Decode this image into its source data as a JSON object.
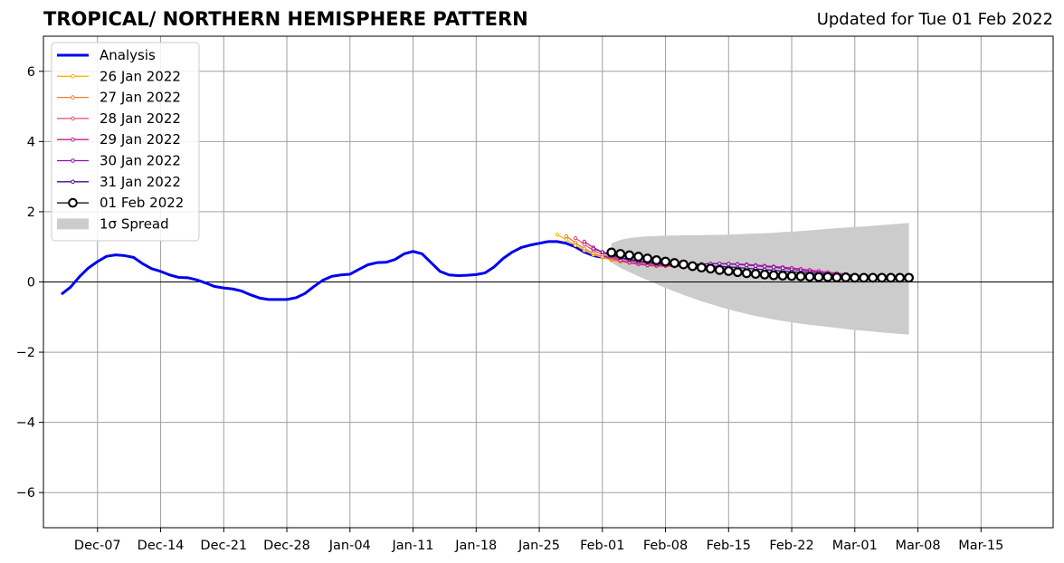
{
  "header": {
    "title": "TROPICAL/ NORTHERN HEMISPHERE PATTERN",
    "updated": "Updated for Tue 01 Feb 2022"
  },
  "colors": {
    "analysis": "#0000ee",
    "spread": "#cccccc",
    "grid": "#a0a0a0",
    "forecasts": [
      "#f5b800",
      "#f07e2a",
      "#e0506a",
      "#c0208a",
      "#8a10b0",
      "#4a0a8a",
      "#000000"
    ]
  },
  "chart_data": {
    "type": "line",
    "title": "TROPICAL/ NORTHERN HEMISPHERE PATTERN",
    "xlabel": "",
    "ylabel": "",
    "xlim": [
      "2021-12-01",
      "2022-03-23"
    ],
    "ylim": [
      -7,
      7
    ],
    "grid": true,
    "legend_position": "top-left",
    "x_ticks": [
      "Dec-07",
      "Dec-14",
      "Dec-21",
      "Dec-28",
      "Jan-04",
      "Jan-11",
      "Jan-18",
      "Jan-25",
      "Feb-01",
      "Feb-08",
      "Feb-15",
      "Feb-22",
      "Mar-01",
      "Mar-08",
      "Mar-15"
    ],
    "y_ticks": [
      "6",
      "4",
      "2",
      "0",
      "−2",
      "−4",
      "−6"
    ],
    "analysis": {
      "name": "Analysis",
      "start": "2021-12-03",
      "values": [
        -0.35,
        -0.15,
        0.15,
        0.4,
        0.58,
        0.73,
        0.77,
        0.75,
        0.7,
        0.52,
        0.38,
        0.3,
        0.2,
        0.13,
        0.12,
        0.06,
        -0.03,
        -0.13,
        -0.17,
        -0.2,
        -0.26,
        -0.37,
        -0.46,
        -0.5,
        -0.5,
        -0.5,
        -0.45,
        -0.33,
        -0.13,
        0.05,
        0.16,
        0.2,
        0.22,
        0.36,
        0.49,
        0.55,
        0.56,
        0.64,
        0.8,
        0.87,
        0.8,
        0.55,
        0.3,
        0.2,
        0.18,
        0.19,
        0.21,
        0.26,
        0.43,
        0.67,
        0.85,
        0.98,
        1.05,
        1.1,
        1.15,
        1.15,
        1.1,
        1.0,
        0.85,
        0.75,
        0.7,
        0.68
      ]
    },
    "forecasts": [
      {
        "name": "26 Jan 2022",
        "start": "2022-01-27",
        "values": [
          1.35,
          1.2,
          1.05,
          0.9,
          0.78,
          0.7,
          0.62,
          0.58,
          0.55,
          0.52,
          0.5,
          0.48,
          0.47,
          0.46
        ]
      },
      {
        "name": "27 Jan 2022",
        "start": "2022-01-28",
        "values": [
          1.3,
          1.12,
          0.95,
          0.82,
          0.72,
          0.64,
          0.58,
          0.54,
          0.5,
          0.48,
          0.47,
          0.46,
          0.45,
          0.45
        ]
      },
      {
        "name": "28 Jan 2022",
        "start": "2022-01-29",
        "values": [
          1.25,
          1.07,
          0.9,
          0.78,
          0.68,
          0.6,
          0.55,
          0.5,
          0.47,
          0.45,
          0.45,
          0.44,
          0.44,
          0.44,
          0.44
        ]
      },
      {
        "name": "29 Jan 2022",
        "start": "2022-01-30",
        "values": [
          1.15,
          0.98,
          0.85,
          0.72,
          0.62,
          0.56,
          0.52,
          0.48,
          0.47,
          0.47,
          0.48,
          0.49,
          0.5,
          0.51,
          0.52,
          0.52,
          0.52,
          0.51,
          0.5,
          0.48,
          0.46,
          0.44,
          0.42,
          0.4,
          0.37,
          0.34,
          0.31,
          0.28,
          0.25,
          0.22,
          0.19
        ]
      },
      {
        "name": "30 Jan 2022",
        "start": "2022-01-31",
        "values": [
          0.95,
          0.85,
          0.75,
          0.68,
          0.62,
          0.57,
          0.54,
          0.51,
          0.5,
          0.5,
          0.5,
          0.51,
          0.51,
          0.52,
          0.52,
          0.51,
          0.5,
          0.48,
          0.46,
          0.44,
          0.42,
          0.39,
          0.36,
          0.33,
          0.3,
          0.27,
          0.24,
          0.21,
          0.18,
          0.16,
          0.14
        ]
      },
      {
        "name": "31 Jan 2022",
        "start": "2022-02-01",
        "values": [
          0.85,
          0.78,
          0.7,
          0.64,
          0.6,
          0.56,
          0.53,
          0.51,
          0.49,
          0.48,
          0.47,
          0.46,
          0.45,
          0.44,
          0.43,
          0.41,
          0.39,
          0.37,
          0.35,
          0.33,
          0.31,
          0.29,
          0.27,
          0.25,
          0.23,
          0.21,
          0.19,
          0.17,
          0.15,
          0.14,
          0.13
        ]
      },
      {
        "name": "01 Feb 2022",
        "start": "2022-02-02",
        "values": [
          0.84,
          0.8,
          0.76,
          0.72,
          0.67,
          0.62,
          0.58,
          0.54,
          0.5,
          0.45,
          0.41,
          0.38,
          0.34,
          0.31,
          0.28,
          0.25,
          0.23,
          0.21,
          0.19,
          0.18,
          0.17,
          0.16,
          0.15,
          0.14,
          0.14,
          0.13,
          0.13,
          0.12,
          0.12,
          0.12,
          0.12,
          0.12,
          0.12,
          0.12
        ]
      }
    ],
    "spread": {
      "name": "1σ Spread",
      "start": "2022-02-02",
      "upper": [
        1.1,
        1.2,
        1.25,
        1.28,
        1.3,
        1.31,
        1.32,
        1.32,
        1.33,
        1.33,
        1.33,
        1.34,
        1.34,
        1.35,
        1.36,
        1.37,
        1.38,
        1.39,
        1.4,
        1.42,
        1.43,
        1.45,
        1.47,
        1.49,
        1.51,
        1.53,
        1.55,
        1.57,
        1.58,
        1.6,
        1.62,
        1.64,
        1.66,
        1.68
      ],
      "lower": [
        0.55,
        0.4,
        0.28,
        0.16,
        0.05,
        -0.06,
        -0.17,
        -0.27,
        -0.37,
        -0.46,
        -0.55,
        -0.63,
        -0.71,
        -0.78,
        -0.85,
        -0.91,
        -0.97,
        -1.02,
        -1.07,
        -1.11,
        -1.15,
        -1.19,
        -1.22,
        -1.25,
        -1.28,
        -1.31,
        -1.34,
        -1.37,
        -1.39,
        -1.41,
        -1.44,
        -1.46,
        -1.48,
        -1.5
      ]
    }
  }
}
